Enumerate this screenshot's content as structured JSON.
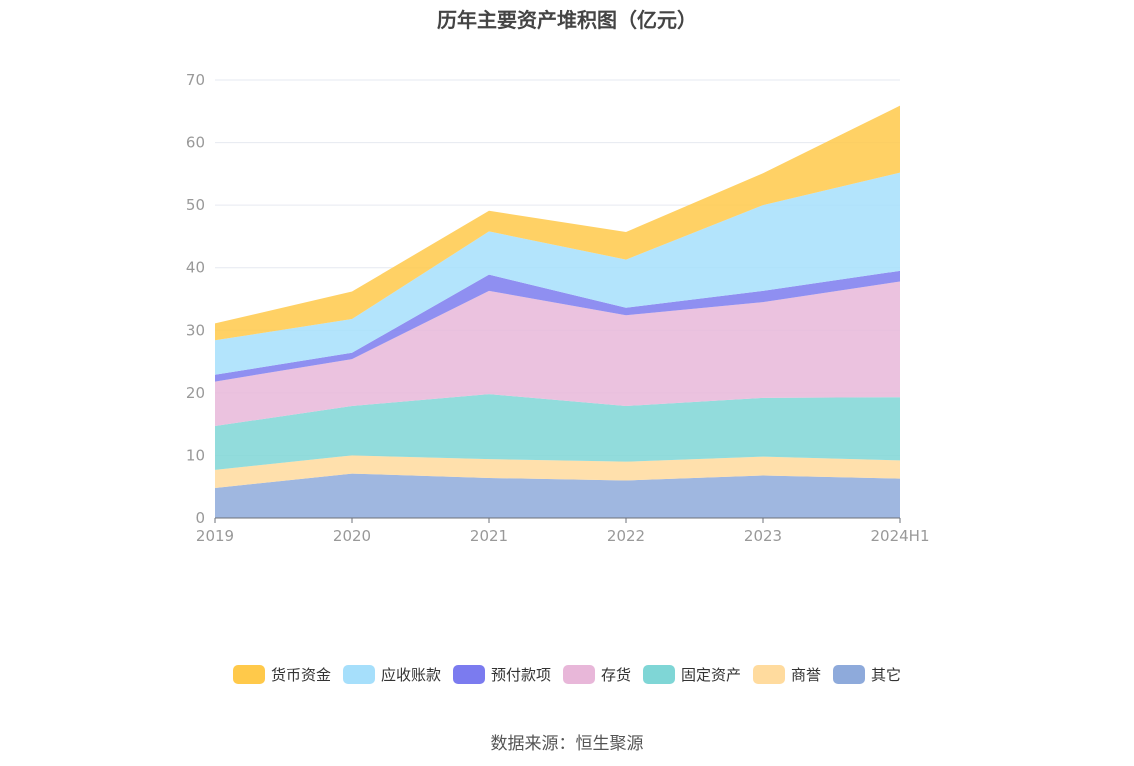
{
  "chart_data": {
    "type": "area",
    "stacked": true,
    "title": "历年主要资产堆积图（亿元）",
    "source": "数据来源：恒生聚源",
    "categories": [
      "2019",
      "2020",
      "2021",
      "2022",
      "2023",
      "2024H1"
    ],
    "ylim": [
      0,
      70
    ],
    "yticks": [
      0,
      10,
      20,
      30,
      40,
      50,
      60,
      70
    ],
    "grid": true,
    "legend_position": "bottom",
    "series": [
      {
        "name": "其它",
        "color": "#8eaadb",
        "values": [
          4.8,
          7.1,
          6.4,
          6.0,
          6.8,
          6.3
        ]
      },
      {
        "name": "商誉",
        "color": "#ffdb9e",
        "values": [
          2.9,
          2.9,
          3.0,
          3.0,
          3.0,
          2.9
        ]
      },
      {
        "name": "固定资产",
        "color": "#7fd6d6",
        "values": [
          7.0,
          7.9,
          10.4,
          8.9,
          9.4,
          10.1
        ]
      },
      {
        "name": "存货",
        "color": "#e8b7d9",
        "values": [
          7.1,
          7.5,
          16.5,
          14.5,
          15.3,
          18.5
        ]
      },
      {
        "name": "预付款项",
        "color": "#7b7bef",
        "values": [
          1.1,
          1.0,
          2.6,
          1.2,
          1.8,
          1.7
        ]
      },
      {
        "name": "应收账款",
        "color": "#a6dffb",
        "values": [
          5.5,
          5.4,
          6.9,
          7.7,
          13.7,
          15.7
        ]
      },
      {
        "name": "货币资金",
        "color": "#ffc94a",
        "values": [
          2.7,
          4.4,
          3.3,
          4.4,
          5.1,
          10.7
        ]
      }
    ]
  }
}
